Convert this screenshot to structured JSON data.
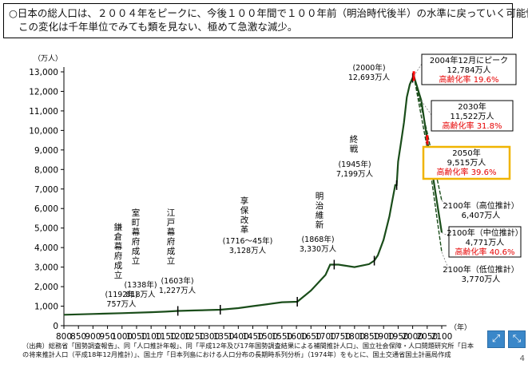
{
  "header": {
    "line1": "○日本の総人口は、２００４年をピークに、今後１００年間で１００年前（明治時代後半）の水準に戻っていく可能性。",
    "line2": "この変化は千年単位でみても類を見ない、極めて急激な減少。"
  },
  "chart_data": {
    "type": "line",
    "ylabel": "（万人）",
    "xlabel": "（年）",
    "xlim": [
      800,
      2100
    ],
    "ylim": [
      0,
      13000
    ],
    "x_ticks": [
      800,
      850,
      900,
      950,
      1000,
      1050,
      1100,
      1150,
      1200,
      1250,
      1300,
      1350,
      1400,
      1450,
      1500,
      1550,
      1600,
      1650,
      1700,
      1750,
      1800,
      1850,
      1900,
      1950,
      2000,
      2050,
      2100
    ],
    "y_ticks": [
      0,
      1000,
      2000,
      3000,
      4000,
      5000,
      6000,
      7000,
      8000,
      9000,
      10000,
      11000,
      12000,
      13000
    ],
    "y_tick_labels": [
      "0",
      "1,000",
      "2,000",
      "3,000",
      "4,000",
      "5,000",
      "6,000",
      "7,000",
      "8,000",
      "9,000",
      "10,000",
      "11,000",
      "12,000",
      "13,000"
    ],
    "colors": {
      "line": "#1a4d1a",
      "marker": "#ff0000",
      "highlight_border": "#f0b400",
      "aging_text": "#e60000",
      "guide": "#777777"
    },
    "series": [
      {
        "role": "history",
        "x": [
          800,
          900,
          1000,
          1100,
          1150,
          1192,
          1250,
          1300,
          1338,
          1400,
          1450,
          1500,
          1550,
          1603,
          1650,
          1700,
          1716,
          1745,
          1800,
          1850,
          1868,
          1880,
          1900,
          1920,
          1930,
          1940,
          1945,
          1950,
          1960,
          1970,
          1980,
          1990,
          2000,
          2004
        ],
        "y": [
          560,
          600,
          640,
          690,
          720,
          757,
          780,
          800,
          818,
          900,
          1000,
          1100,
          1200,
          1227,
          1800,
          2600,
          3128,
          3128,
          3000,
          3150,
          3330,
          3600,
          4400,
          5600,
          6400,
          7200,
          7199,
          8400,
          9400,
          10400,
          11700,
          12360,
          12693,
          12784
        ]
      },
      {
        "role": "projection-mid",
        "x": [
          2004,
          2030,
          2050,
          2100
        ],
        "y": [
          12784,
          11522,
          9515,
          4771
        ]
      },
      {
        "role": "projection-high",
        "x": [
          2004,
          2050,
          2100
        ],
        "y": [
          12784,
          9900,
          6407
        ]
      },
      {
        "role": "projection-low",
        "x": [
          2004,
          2050,
          2100
        ],
        "y": [
          12784,
          9100,
          3770
        ]
      }
    ],
    "annotations": [
      {
        "year": 1192,
        "value": 757,
        "vertical": "鎌倉幕府成立",
        "date": "(1192年)",
        "pop": "757万人"
      },
      {
        "year": 1338,
        "value": 818,
        "vertical": "室町幕府成立",
        "date": "(1338年)",
        "pop": "818万人"
      },
      {
        "year": 1603,
        "value": 1227,
        "vertical": "江戸幕府成立",
        "date": "(1603年)",
        "pop": "1,227万人"
      },
      {
        "year": 1730,
        "value": 3128,
        "vertical": "享保改革",
        "date": "(1716～45年)",
        "pop": "3,128万人"
      },
      {
        "year": 1868,
        "value": 3330,
        "vertical": "明治維新",
        "date": "(1868年)",
        "pop": "3,330万人"
      },
      {
        "year": 1945,
        "value": 7199,
        "vertical": "終戦",
        "date": "(1945年)",
        "pop": "7,199万人"
      },
      {
        "year": 2000,
        "value": 12693,
        "vertical": "",
        "date": "(2000年)",
        "pop": "12,693万人"
      }
    ],
    "callouts": [
      {
        "lines": [
          "2004年12月にピーク",
          "12,784万人"
        ],
        "aging": "高齢化率 19.6%"
      },
      {
        "lines": [
          "2030年",
          "11,522万人"
        ],
        "aging": "高齢化率 31.8%"
      },
      {
        "lines": [
          "2050年",
          "9,515万人"
        ],
        "aging": "高齢化率 39.6%",
        "highlight": true
      },
      {
        "lines": [
          "2100年（高位推計）",
          "6,407万人"
        ],
        "aging": ""
      },
      {
        "lines": [
          "2100年（中位推計）",
          "4,771万人"
        ],
        "aging": "高齢化率 40.6%"
      },
      {
        "lines": [
          "2100年（低位推計）",
          "3,770万人"
        ],
        "aging": ""
      }
    ]
  },
  "source": {
    "line1": "（出典）総務省「国勢調査報告」、同「人口推計年報」、同「平成12年及び17年国勢調査結果による補間推計人口」、国立社会保障・人口問題研究所「日本",
    "line2": "の将来推計人口（平成18年12月推計）」、国土庁「日本列島における人口分布の長期時系列分析」（1974年）をもとに、国土交通省国土計画局作成"
  },
  "page": {
    "number": "4"
  },
  "nav": {
    "prev_glyph": "⤢",
    "next_glyph": "⤡"
  }
}
